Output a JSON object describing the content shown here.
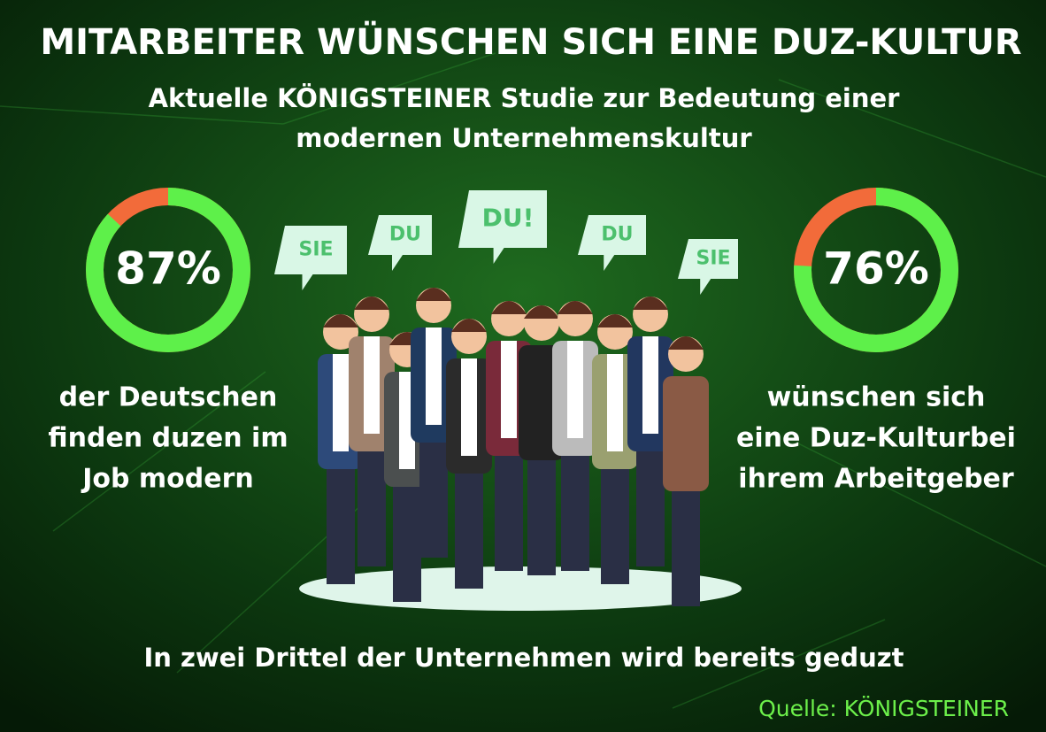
{
  "title": "MITARBEITER WÜNSCHEN  SICH EINE DUZ-KULTUR",
  "subtitle": [
    "Aktuelle KÖNIGSTEINER Studie  zur Bedeutung einer",
    "modernen Unternehmenskultur"
  ],
  "stats": [
    {
      "value": 87,
      "label": "87%",
      "text": [
        "der Deutschen",
        "finden duzen im",
        "Job modern"
      ]
    },
    {
      "value": 76,
      "label": "76%",
      "text": [
        "wünschen sich",
        "eine  Duz-Kulturbei",
        "ihrem Arbeitgeber"
      ]
    }
  ],
  "bubbles": [
    "SIE",
    "DU",
    "DU!",
    "DU",
    "SIE"
  ],
  "footer": "In zwei Drittel der Unternehmen wird bereits  geduzt",
  "source": "Quelle: KÖNIGSTEINER"
}
